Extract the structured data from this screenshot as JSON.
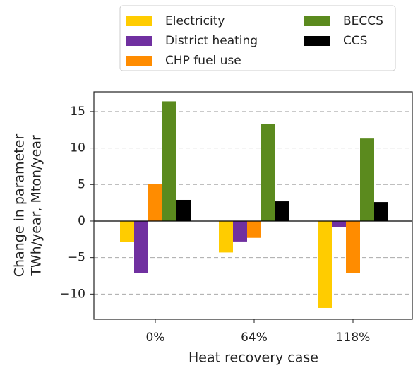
{
  "chart_data": {
    "type": "bar",
    "xlabel": "Heat recovery case",
    "ylabel": [
      "Change in parameter",
      "TWh/year, Mton/year"
    ],
    "categories": [
      "0%",
      "64%",
      "118%"
    ],
    "series": [
      {
        "name": "Electricity",
        "color": "#ffcc00",
        "values": [
          -2.9,
          -4.3,
          -11.9
        ]
      },
      {
        "name": "District heating",
        "color": "#7030a0",
        "values": [
          -7.1,
          -2.8,
          -0.8
        ]
      },
      {
        "name": "CHP fuel use",
        "color": "#ff8c00",
        "values": [
          5.1,
          -2.3,
          -7.1
        ]
      },
      {
        "name": "BECCS",
        "color": "#5b8a1e",
        "values": [
          16.4,
          13.3,
          11.3
        ]
      },
      {
        "name": "CCS",
        "color": "#000000",
        "values": [
          2.9,
          2.7,
          2.6
        ]
      }
    ],
    "ylim": [
      -13.45,
      17.7
    ],
    "yticks": [
      {
        "value": -10,
        "label": "−10"
      },
      {
        "value": -5,
        "label": "−5"
      },
      0,
      5,
      10,
      15
    ],
    "grid": true
  }
}
